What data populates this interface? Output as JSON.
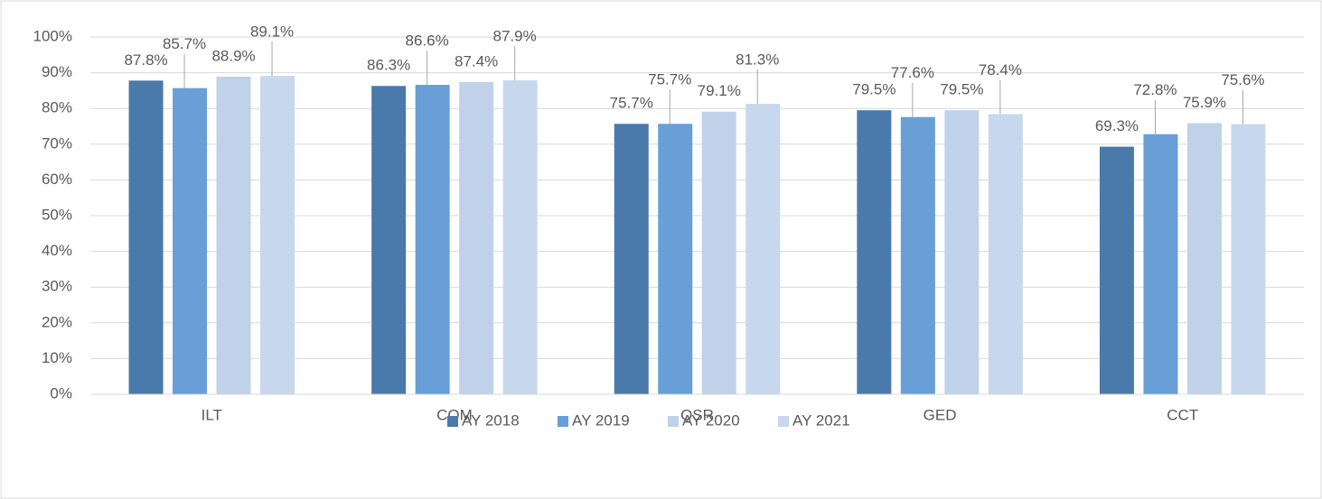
{
  "chart_data": {
    "type": "bar",
    "categories": [
      "ILT",
      "COM",
      "QSR",
      "GED",
      "CCT"
    ],
    "series": [
      {
        "name": "AY 2018",
        "color": "#4a7aab",
        "values": [
          87.8,
          86.3,
          75.7,
          79.5,
          69.3
        ],
        "value_labels": [
          "87.8%",
          "86.3%",
          "75.7%",
          "79.5%",
          "69.3%"
        ]
      },
      {
        "name": "AY 2019",
        "color": "#679fd6",
        "values": [
          85.7,
          86.6,
          75.7,
          77.6,
          72.8
        ],
        "value_labels": [
          "85.7%",
          "86.6%",
          "75.7%",
          "77.6%",
          "72.8%"
        ]
      },
      {
        "name": "AY 2020",
        "color": "#bfd2ea",
        "values": [
          88.9,
          87.4,
          79.1,
          79.5,
          75.9
        ],
        "value_labels": [
          "88.9%",
          "87.4%",
          "79.1%",
          "79.5%",
          "75.9%"
        ]
      },
      {
        "name": "AY 2021",
        "color": "#c7d7ee",
        "values": [
          89.1,
          87.9,
          81.3,
          78.4,
          75.6
        ],
        "value_labels": [
          "89.1%",
          "87.9%",
          "81.3%",
          "78.4%",
          "75.6%"
        ]
      }
    ],
    "ylim": [
      0,
      100
    ],
    "yticks": [
      {
        "value": 0,
        "label": "0%"
      },
      {
        "value": 10,
        "label": "10%"
      },
      {
        "value": 20,
        "label": "20%"
      },
      {
        "value": 30,
        "label": "30%"
      },
      {
        "value": 40,
        "label": "40%"
      },
      {
        "value": 50,
        "label": "50%"
      },
      {
        "value": 60,
        "label": "60%"
      },
      {
        "value": 70,
        "label": "70%"
      },
      {
        "value": 80,
        "label": "80%"
      },
      {
        "value": 90,
        "label": "90%"
      },
      {
        "value": 100,
        "label": "100%"
      }
    ],
    "grid": true,
    "legend": "bottom"
  }
}
